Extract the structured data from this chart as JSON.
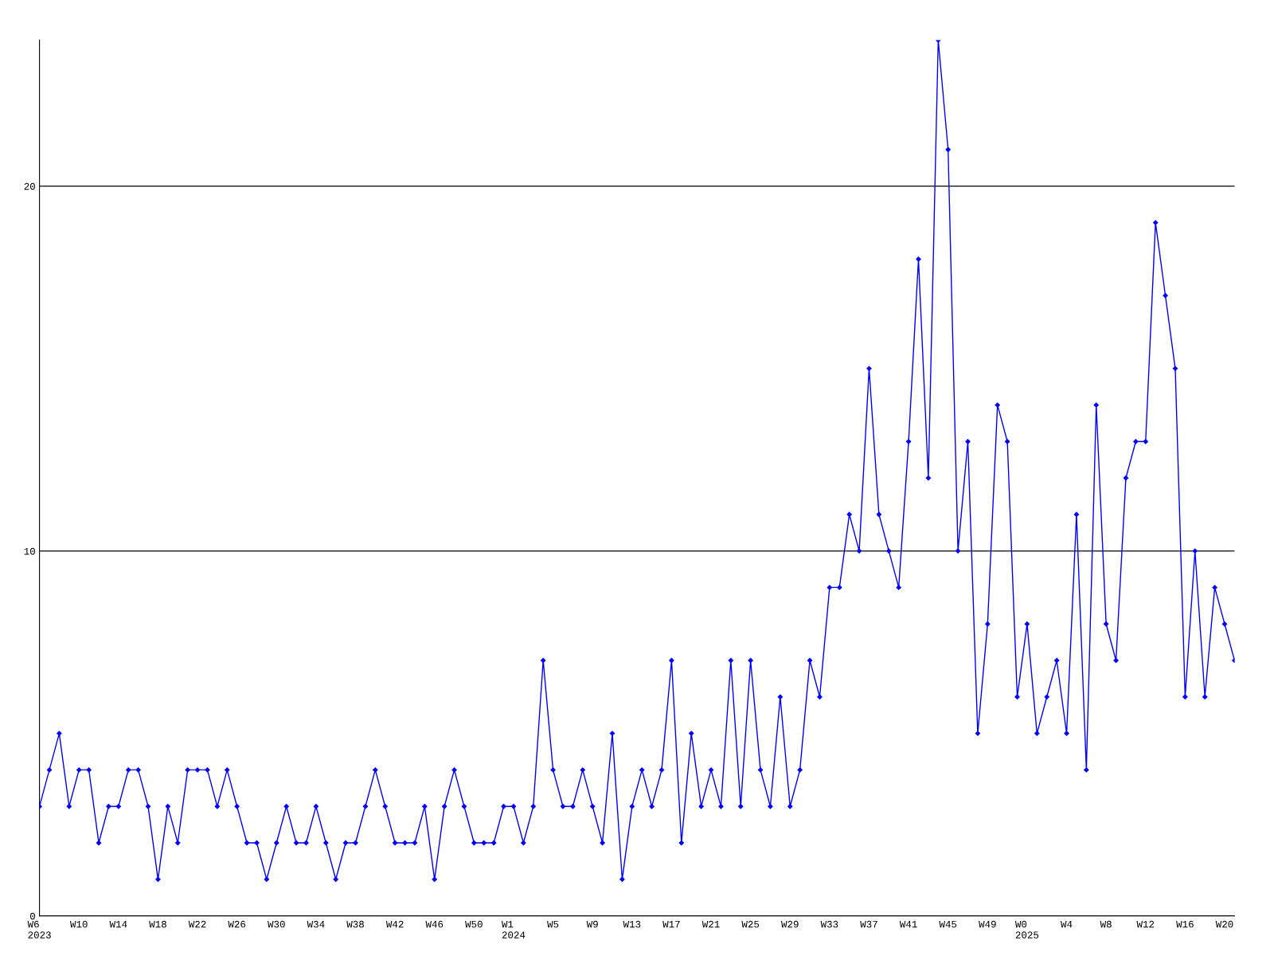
{
  "chart_data": {
    "type": "line",
    "categories": [
      "W6\n2023",
      null,
      null,
      null,
      "W10",
      null,
      null,
      null,
      "W14",
      null,
      null,
      null,
      "W18",
      null,
      null,
      null,
      "W22",
      null,
      null,
      null,
      "W26",
      null,
      null,
      null,
      "W30",
      null,
      null,
      null,
      "W34",
      null,
      null,
      null,
      "W38",
      null,
      null,
      null,
      "W42",
      null,
      null,
      null,
      "W46",
      null,
      null,
      null,
      "W50",
      null,
      null,
      null,
      "W1\n2024",
      null,
      null,
      null,
      "W5",
      null,
      null,
      null,
      "W9",
      null,
      null,
      null,
      "W13",
      null,
      null,
      null,
      "W17",
      null,
      null,
      null,
      "W21",
      null,
      null,
      null,
      "W25",
      null,
      null,
      null,
      "W29",
      null,
      null,
      null,
      "W33",
      null,
      null,
      null,
      "W37",
      null,
      null,
      null,
      "W41",
      null,
      null,
      null,
      "W45",
      null,
      null,
      null,
      "W49",
      null,
      null,
      null,
      "W0\n2025",
      null,
      null,
      null,
      "W4",
      null,
      null,
      null,
      "W8",
      null,
      null,
      null,
      "W12",
      null,
      null,
      null,
      "W16",
      null,
      null,
      null,
      "W20",
      null
    ],
    "series": [
      {
        "color": "#0000ff",
        "values": [
          3,
          4,
          5,
          3,
          4,
          4,
          2,
          3,
          3,
          4,
          4,
          3,
          1,
          3,
          2,
          4,
          4,
          4,
          3,
          4,
          3,
          2,
          2,
          1,
          2,
          3,
          2,
          2,
          3,
          2,
          1,
          2,
          2,
          3,
          4,
          3,
          2,
          2,
          2,
          3,
          1,
          3,
          4,
          3,
          2,
          2,
          2,
          3,
          3,
          2,
          3,
          7,
          4,
          3,
          3,
          4,
          3,
          2,
          5,
          1,
          3,
          4,
          3,
          4,
          7,
          2,
          5,
          3,
          4,
          3,
          7,
          3,
          7,
          4,
          3,
          6,
          3,
          4,
          7,
          6,
          9,
          9,
          11,
          10,
          15,
          11,
          10,
          9,
          13,
          18,
          12,
          24,
          21,
          10,
          13,
          5,
          8,
          14,
          13,
          6,
          8,
          5,
          6,
          7,
          5,
          11,
          4,
          14,
          8,
          7,
          12,
          13,
          13,
          19,
          17,
          15,
          6,
          10,
          6,
          9,
          8,
          7
        ]
      }
    ],
    "ylim": [
      0,
      24
    ],
    "yticks": [
      0,
      10,
      20
    ],
    "grid": "y",
    "marker": "diamond",
    "line_style": "solid"
  }
}
